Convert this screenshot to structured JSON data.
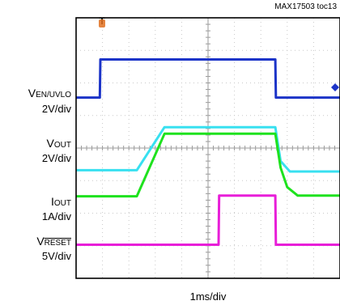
{
  "figure_id": "MAX17503 toc13",
  "time_scale": "1ms/div",
  "colors": {
    "plot_bg": "#ffffff",
    "grid": "#c9c9c9",
    "frame": "#000000",
    "marker": "#e07020"
  },
  "channels": [
    {
      "sym": "V",
      "sub": "EN/UVLO",
      "scale": "2V/div",
      "overline": false
    },
    {
      "sym": "V",
      "sub": "OUT",
      "scale": "2V/div",
      "overline": false
    },
    {
      "sym": "I",
      "sub": "OUT",
      "scale": "1A/div",
      "overline": false
    },
    {
      "sym": "V",
      "sub": "RESET",
      "scale": "5V/div",
      "overline": true
    }
  ],
  "chart_data": {
    "type": "line",
    "title": "",
    "xlabel": "1ms/div",
    "ylabel": "",
    "xlim": [
      0,
      10
    ],
    "ylim": [
      0,
      8
    ],
    "grid": true,
    "series": [
      {
        "name": "VEN/UVLO",
        "color": "#1c34c8",
        "points": [
          [
            0,
            5.55
          ],
          [
            0.9,
            5.55
          ],
          [
            0.92,
            6.72
          ],
          [
            7.55,
            6.72
          ],
          [
            7.57,
            5.55
          ],
          [
            10,
            5.55
          ]
        ]
      },
      {
        "name": "VOUT",
        "color": "#38e0f0",
        "points": [
          [
            0,
            3.32
          ],
          [
            2.3,
            3.32
          ],
          [
            3.35,
            4.64
          ],
          [
            7.55,
            4.64
          ],
          [
            7.75,
            3.6
          ],
          [
            8.1,
            3.28
          ],
          [
            10,
            3.28
          ]
        ]
      },
      {
        "name": "IOUT",
        "color": "#1ee21e",
        "points": [
          [
            0,
            2.52
          ],
          [
            2.3,
            2.52
          ],
          [
            3.35,
            4.44
          ],
          [
            7.55,
            4.44
          ],
          [
            7.75,
            3.4
          ],
          [
            8.0,
            2.8
          ],
          [
            8.4,
            2.54
          ],
          [
            10,
            2.54
          ]
        ]
      },
      {
        "name": "VRESET",
        "color": "#e81ed8",
        "points": [
          [
            0,
            1.03
          ],
          [
            5.4,
            1.03
          ],
          [
            5.42,
            2.54
          ],
          [
            7.55,
            2.54
          ],
          [
            7.57,
            1.03
          ],
          [
            10,
            1.03
          ]
        ]
      }
    ]
  }
}
